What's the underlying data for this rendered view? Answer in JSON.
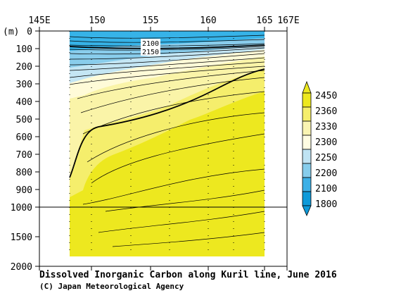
{
  "chart_data": {
    "type": "heatmap",
    "title": "Dissolved Inorganic Carbon along Kuril line, June 2016",
    "credit": "(C) Japan Meteorological Agency",
    "x_ticks": [
      "145E",
      "150",
      "155",
      "160",
      "165",
      "167E"
    ],
    "x_tick_values": [
      145,
      150,
      155,
      160,
      165,
      167
    ],
    "xlim": [
      145,
      167
    ],
    "depth_unit": "(m)",
    "y_ticks_upper": [
      "0",
      "100",
      "200",
      "300",
      "400",
      "500",
      "600",
      "700",
      "800",
      "900",
      "1000"
    ],
    "y_ticks_lower": [
      "1500",
      "2000"
    ],
    "ylim": [
      0,
      2000
    ],
    "axis_break_depth": 1000,
    "section_longitudes": [
      148.3,
      166.2
    ],
    "colorbar": {
      "levels": [
        "2450",
        "2360",
        "2330",
        "2300",
        "2250",
        "2200",
        "2100",
        "1800"
      ],
      "colors": [
        "#ede81f",
        "#f5ee6c",
        "#faf4b2",
        "#fffce2",
        "#bfe3f3",
        "#86cdec",
        "#3cb0e6",
        "#0e9ad9"
      ]
    },
    "contour_labels": [
      "2100",
      "2150"
    ],
    "station_longitudes": [
      150.5,
      153.5,
      156.5,
      159.5,
      161.5,
      164.5
    ],
    "regions": {
      "surface_low": "#36b3e8",
      "mid_blue": "#89cdec",
      "pale_blue": "#c4e6f4",
      "cream": "#fffbd8",
      "light_yellow": "#faf4a8",
      "yellow": "#f5ee6c",
      "deep_yellow": "#ede81f"
    }
  }
}
